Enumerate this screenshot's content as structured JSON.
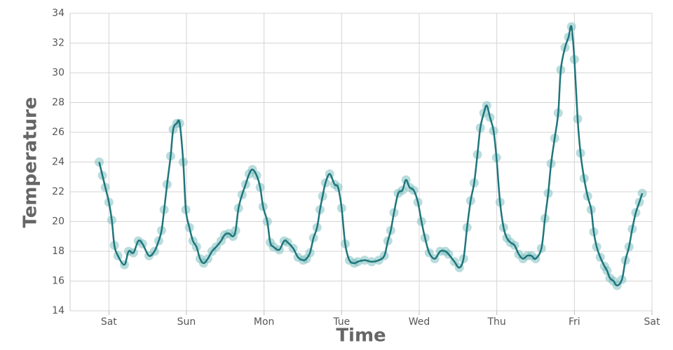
{
  "chart_data": {
    "type": "line",
    "markers": true,
    "xlabel": "Time",
    "ylabel": "Temperature",
    "color": "#1e767c",
    "marker_color": "#7fbfbf",
    "xlim": [
      -12,
      168
    ],
    "xticks": [
      {
        "value": 0,
        "label": "Sat"
      },
      {
        "value": 24,
        "label": "Sun"
      },
      {
        "value": 48,
        "label": "Mon"
      },
      {
        "value": 72,
        "label": "Tue"
      },
      {
        "value": 96,
        "label": "Wed"
      },
      {
        "value": 120,
        "label": "Thu"
      },
      {
        "value": 144,
        "label": "Fri"
      },
      {
        "value": 168,
        "label": "Sat"
      }
    ],
    "ylim": [
      14,
      34
    ],
    "yticks": [
      14,
      16,
      18,
      20,
      22,
      24,
      26,
      28,
      30,
      32,
      34
    ],
    "grid": true,
    "x": [
      -3.0,
      -2.0,
      -1.1,
      0,
      0.9,
      1.7,
      2.8,
      4.8,
      6.1,
      7.6,
      9.1,
      10.4,
      12.4,
      14.1,
      15.4,
      16.3,
      17.1,
      18.0,
      19.1,
      19.9,
      21.0,
      21.9,
      23.0,
      23.8,
      24.9,
      26.0,
      27.1,
      28.2,
      29.3,
      30.6,
      31.9,
      33.2,
      34.7,
      35.8,
      37.1,
      38.4,
      39.2,
      40.1,
      41.2,
      42.3,
      43.4,
      44.4,
      45.7,
      46.8,
      47.7,
      49.0,
      49.9,
      50.9,
      52.7,
      54.2,
      55.3,
      57.0,
      58.5,
      60.1,
      61.1,
      62.2,
      63.3,
      64.4,
      65.3,
      66.1,
      67.0,
      68.3,
      69.8,
      70.9,
      72.0,
      73.1,
      74.4,
      75.9,
      77.0,
      79.1,
      81.3,
      83.5,
      85.2,
      86.3,
      87.2,
      88.2,
      89.5,
      90.8,
      91.9,
      93.0,
      94.3,
      95.6,
      96.7,
      97.8,
      99.1,
      100.8,
      102.5,
      104.1,
      105.1,
      106.9,
      108.4,
      109.7,
      110.8,
      111.9,
      113.0,
      114.0,
      114.9,
      116.0,
      116.9,
      117.9,
      119.0,
      119.9,
      121.0,
      122.1,
      123.1,
      124.2,
      125.5,
      126.8,
      128.1,
      129.4,
      130.7,
      132.0,
      133.8,
      134.9,
      135.9,
      136.8,
      137.9,
      139.0,
      139.8,
      141.1,
      142.2,
      143.1,
      144.0,
      145.0,
      145.9,
      147.0,
      148.1,
      149.2,
      150.0,
      150.9,
      152.0,
      153.3,
      154.1,
      155.0,
      156.1,
      157.2,
      158.7,
      159.8,
      160.9,
      161.9,
      163.0,
      164.1,
      165.0
    ],
    "values": [
      24.0,
      23.1,
      22.3,
      21.3,
      20.1,
      18.4,
      17.7,
      17.1,
      18.0,
      17.9,
      18.7,
      18.5,
      17.7,
      18.0,
      18.7,
      19.4,
      20.8,
      22.5,
      24.4,
      26.2,
      26.6,
      26.6,
      24.0,
      20.8,
      19.6,
      18.7,
      18.3,
      17.5,
      17.2,
      17.5,
      18.0,
      18.3,
      18.7,
      19.1,
      19.2,
      19.0,
      19.4,
      20.9,
      21.8,
      22.5,
      23.2,
      23.5,
      23.1,
      22.3,
      21.0,
      20.0,
      18.6,
      18.3,
      18.1,
      18.7,
      18.6,
      18.2,
      17.6,
      17.4,
      17.5,
      17.9,
      18.9,
      19.6,
      20.8,
      21.7,
      22.6,
      23.2,
      22.5,
      22.3,
      20.9,
      18.5,
      17.4,
      17.2,
      17.3,
      17.4,
      17.3,
      17.4,
      17.7,
      18.7,
      19.4,
      20.6,
      21.9,
      22.1,
      22.8,
      22.3,
      22.1,
      21.3,
      20.0,
      18.9,
      17.9,
      17.5,
      18.0,
      18.0,
      17.8,
      17.3,
      16.9,
      17.5,
      19.6,
      21.4,
      22.6,
      24.5,
      26.3,
      27.3,
      27.8,
      27.0,
      26.1,
      24.3,
      21.3,
      19.6,
      18.9,
      18.6,
      18.4,
      17.8,
      17.5,
      17.7,
      17.7,
      17.5,
      18.2,
      20.2,
      21.9,
      23.9,
      25.6,
      27.3,
      30.2,
      31.7,
      32.4,
      33.1,
      30.9,
      26.9,
      24.6,
      22.9,
      21.7,
      20.8,
      19.3,
      18.3,
      17.6,
      17.0,
      16.7,
      16.2,
      16.0,
      15.7,
      16.1,
      17.4,
      18.3,
      19.5,
      20.6,
      21.3,
      21.9
    ]
  }
}
